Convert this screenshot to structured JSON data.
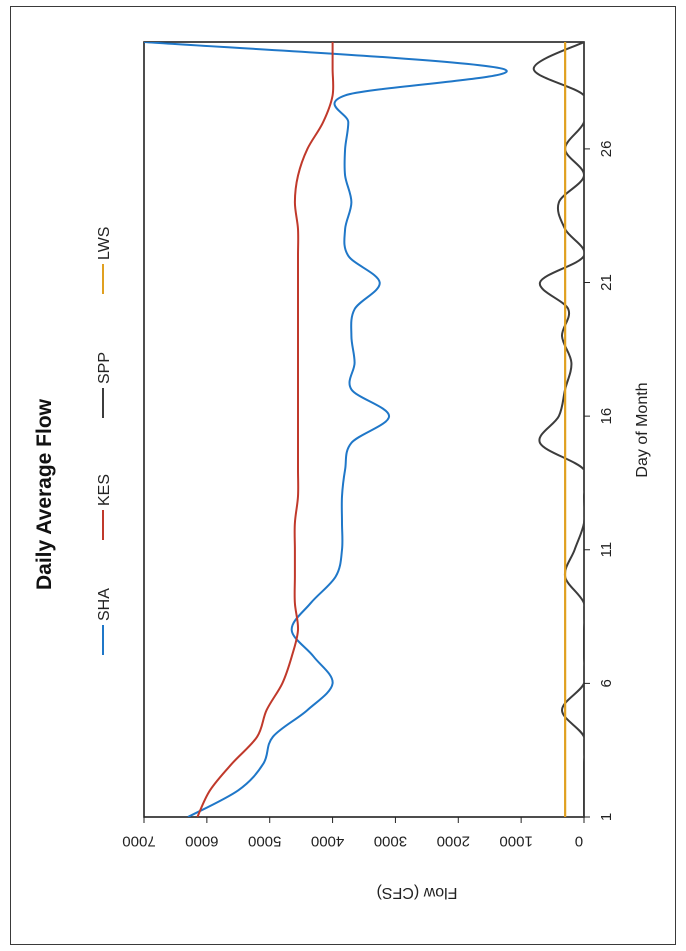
{
  "chart_data": {
    "type": "line",
    "orientation": "rotated 90° counter-clockwise",
    "title": "Daily Average Flow",
    "xlabel": "Day of Month",
    "ylabel": "Flow (CFS)",
    "xlim": [
      1,
      30
    ],
    "ylim": [
      0,
      7000
    ],
    "x_ticks": [
      "1",
      "6",
      "11",
      "16",
      "21",
      "26"
    ],
    "y_ticks": [
      "0",
      "1000",
      "2000",
      "3000",
      "4000",
      "5000",
      "6000",
      "7000"
    ],
    "legend_placement": "top",
    "grid": false,
    "series": [
      {
        "name": "SHA",
        "color": "#1f77c8",
        "x": [
          1,
          2,
          3,
          4,
          5,
          6,
          7,
          8,
          9,
          10,
          11,
          12,
          13,
          14,
          15,
          16,
          17,
          18,
          19,
          20,
          21,
          22,
          23,
          24,
          25,
          26,
          27,
          28,
          29,
          30
        ],
        "y": [
          6300,
          5500,
          5100,
          4950,
          4400,
          4000,
          4300,
          4650,
          4350,
          3950,
          3850,
          3850,
          3850,
          3800,
          3700,
          3100,
          3700,
          3650,
          3700,
          3650,
          3250,
          3750,
          3800,
          3700,
          3800,
          3800,
          3750,
          3800,
          1300,
          7000
        ]
      },
      {
        "name": "KES",
        "color": "#c0392b",
        "x": [
          1,
          2,
          3,
          4,
          5,
          6,
          7,
          8,
          9,
          10,
          11,
          12,
          13,
          14,
          15,
          16,
          17,
          18,
          19,
          20,
          21,
          22,
          23,
          24,
          25,
          26,
          27,
          28,
          29,
          30
        ],
        "y": [
          6150,
          5950,
          5600,
          5200,
          5050,
          4800,
          4650,
          4550,
          4600,
          4600,
          4600,
          4600,
          4550,
          4550,
          4550,
          4550,
          4550,
          4550,
          4550,
          4550,
          4550,
          4550,
          4550,
          4600,
          4550,
          4400,
          4150,
          4000,
          4000,
          4000
        ]
      },
      {
        "name": "SPP",
        "color": "#3c3c3c",
        "x": [
          1,
          2,
          3,
          4,
          5,
          6,
          7,
          8,
          9,
          10,
          11,
          12,
          13,
          14,
          15,
          16,
          17,
          18,
          19,
          20,
          21,
          22,
          23,
          24,
          25,
          26,
          27,
          28,
          29,
          30
        ],
        "y": [
          0,
          0,
          0,
          0,
          350,
          0,
          0,
          0,
          0,
          300,
          150,
          0,
          0,
          0,
          700,
          400,
          300,
          200,
          350,
          250,
          700,
          0,
          300,
          400,
          0,
          300,
          0,
          0,
          800,
          0
        ]
      },
      {
        "name": "LWS",
        "color": "#e0a020",
        "x": [
          1,
          30
        ],
        "y": [
          300,
          300
        ]
      }
    ]
  }
}
